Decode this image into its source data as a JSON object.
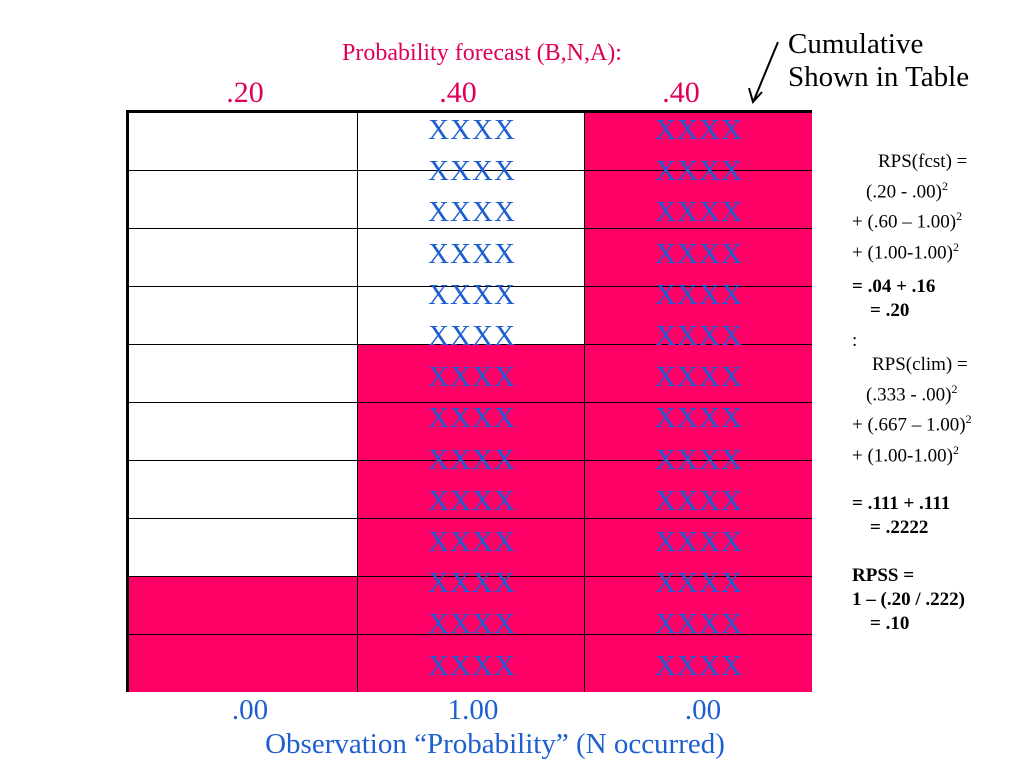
{
  "forecast": {
    "title": "Probability forecast (B,N,A):",
    "values": [
      ".20",
      ".40",
      ".40"
    ]
  },
  "cumulative_note": [
    "Cumulative",
    "Shown in Table"
  ],
  "grid": {
    "cell_text": "XXXX",
    "fill_color": "#ff0066",
    "text_color": "#1d5fd1",
    "col2_x_count": 14,
    "col3_x_count": 14
  },
  "observation": {
    "values": [
      ".00",
      "1.00",
      ".00"
    ],
    "label": "Observation “Probability” (N occurred)"
  },
  "calc": {
    "rps_fcst_head": "RPS(fcst) =",
    "rps_fcst_1": "(.20 - .00)",
    "rps_fcst_2": "+ (.60 – 1.00)",
    "rps_fcst_3": "+ (1.00-1.00)",
    "rps_fcst_sum": "= .04 + .16",
    "rps_fcst_result": "= .20",
    "colon": ":",
    "rps_clim_head": "RPS(clim) =",
    "rps_clim_1": "(.333 - .00)",
    "rps_clim_2": "+ (.667 – 1.00)",
    "rps_clim_3": "+ (1.00-1.00)",
    "rps_clim_sum": "= .111 + .111",
    "rps_clim_result": "= .2222",
    "rpss_head": "RPSS =",
    "rpss_formula": "1 – (.20 / .222)",
    "rpss_result": "= .10",
    "superscript": "2"
  }
}
